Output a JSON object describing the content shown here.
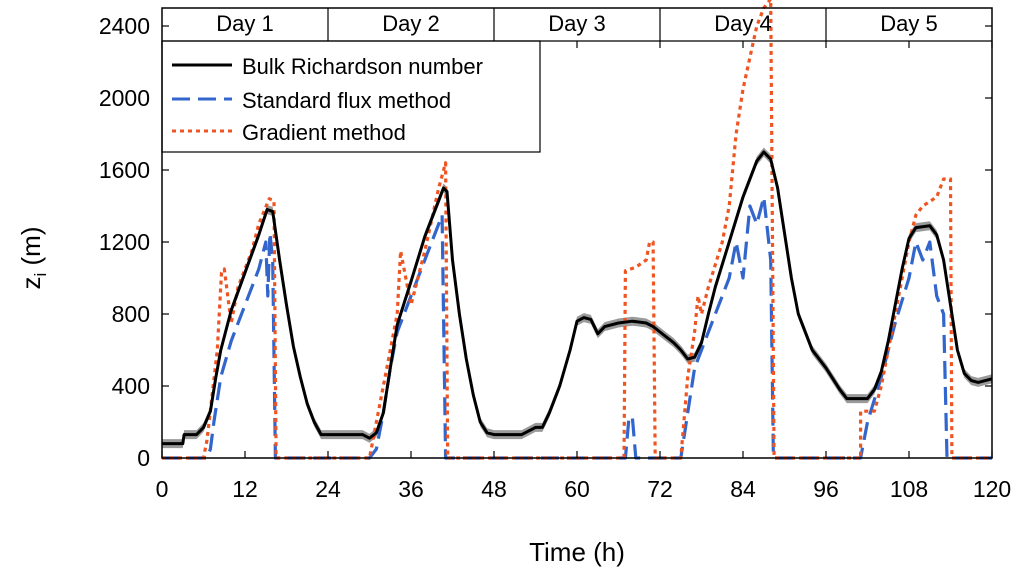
{
  "chart_data": {
    "type": "line",
    "xlabel": "Time (h)",
    "ylabel": "z",
    "ylabel_sub": "i",
    "ylabel_unit": " (m)",
    "xlim": [
      0,
      120
    ],
    "ylim": [
      0,
      2500
    ],
    "xticks": [
      0,
      12,
      24,
      36,
      48,
      60,
      72,
      84,
      96,
      108,
      120
    ],
    "yticks": [
      0,
      400,
      800,
      1200,
      1600,
      2000,
      2400
    ],
    "grid": false,
    "legend_position": "top-left",
    "day_bands": [
      {
        "label": "Day 1",
        "from": 0,
        "to": 24
      },
      {
        "label": "Day 2",
        "from": 24,
        "to": 48
      },
      {
        "label": "Day 3",
        "from": 48,
        "to": 72
      },
      {
        "label": "Day 4",
        "from": 72,
        "to": 96
      },
      {
        "label": "Day 5",
        "from": 96,
        "to": 120
      }
    ],
    "series": [
      {
        "name": "Bulk Richardson number",
        "color": "#000000",
        "style": "solid",
        "band_color": "#888888",
        "band_width": 50,
        "points": [
          [
            0,
            80
          ],
          [
            3,
            80
          ],
          [
            3.2,
            130
          ],
          [
            5,
            130
          ],
          [
            6,
            170
          ],
          [
            7,
            260
          ],
          [
            7.8,
            450
          ],
          [
            8.5,
            600
          ],
          [
            10,
            820
          ],
          [
            12,
            1030
          ],
          [
            14,
            1240
          ],
          [
            15.2,
            1380
          ],
          [
            16,
            1370
          ],
          [
            17,
            1100
          ],
          [
            18,
            850
          ],
          [
            19,
            620
          ],
          [
            20,
            450
          ],
          [
            21,
            300
          ],
          [
            22,
            200
          ],
          [
            23,
            130
          ],
          [
            29,
            130
          ],
          [
            30,
            110
          ],
          [
            31,
            140
          ],
          [
            32,
            250
          ],
          [
            33,
            500
          ],
          [
            34,
            740
          ],
          [
            36,
            980
          ],
          [
            38,
            1230
          ],
          [
            40,
            1430
          ],
          [
            40.7,
            1500
          ],
          [
            41.2,
            1480
          ],
          [
            42,
            1100
          ],
          [
            43,
            800
          ],
          [
            44,
            550
          ],
          [
            45,
            350
          ],
          [
            46,
            200
          ],
          [
            47,
            140
          ],
          [
            48,
            130
          ],
          [
            52,
            130
          ],
          [
            54,
            170
          ],
          [
            55,
            170
          ],
          [
            56,
            250
          ],
          [
            57.5,
            400
          ],
          [
            59,
            600
          ],
          [
            60,
            760
          ],
          [
            61,
            780
          ],
          [
            62,
            770
          ],
          [
            63,
            690
          ],
          [
            64,
            730
          ],
          [
            66,
            750
          ],
          [
            68,
            760
          ],
          [
            70,
            750
          ],
          [
            71,
            730
          ],
          [
            72,
            700
          ],
          [
            74,
            640
          ],
          [
            75,
            600
          ],
          [
            76,
            550
          ],
          [
            77,
            560
          ],
          [
            78,
            640
          ],
          [
            79,
            800
          ],
          [
            80,
            950
          ],
          [
            82,
            1200
          ],
          [
            84,
            1450
          ],
          [
            86,
            1650
          ],
          [
            87,
            1700
          ],
          [
            88,
            1660
          ],
          [
            89,
            1500
          ],
          [
            90,
            1250
          ],
          [
            91,
            1000
          ],
          [
            92,
            800
          ],
          [
            94,
            600
          ],
          [
            96,
            500
          ],
          [
            98,
            380
          ],
          [
            99,
            330
          ],
          [
            102,
            330
          ],
          [
            103,
            380
          ],
          [
            104,
            480
          ],
          [
            105,
            650
          ],
          [
            106,
            850
          ],
          [
            107,
            1050
          ],
          [
            108,
            1220
          ],
          [
            109,
            1280
          ],
          [
            111,
            1290
          ],
          [
            112,
            1240
          ],
          [
            113,
            1100
          ],
          [
            114,
            850
          ],
          [
            115,
            600
          ],
          [
            116,
            470
          ],
          [
            117,
            430
          ],
          [
            118,
            420
          ],
          [
            120,
            440
          ]
        ]
      },
      {
        "name": "Standard flux method",
        "color": "#3366cc",
        "style": "dashed",
        "points": [
          [
            0,
            0
          ],
          [
            6.5,
            0
          ],
          [
            7,
            50
          ],
          [
            7.5,
            200
          ],
          [
            8.5,
            450
          ],
          [
            10,
            650
          ],
          [
            12,
            850
          ],
          [
            14,
            1050
          ],
          [
            15,
            1200
          ],
          [
            15.3,
            900
          ],
          [
            15.6,
            1250
          ],
          [
            16,
            1100
          ],
          [
            16.4,
            0
          ],
          [
            30,
            0
          ],
          [
            31,
            50
          ],
          [
            32,
            250
          ],
          [
            33,
            500
          ],
          [
            34,
            700
          ],
          [
            36,
            900
          ],
          [
            38,
            1100
          ],
          [
            40,
            1300
          ],
          [
            40.5,
            1350
          ],
          [
            41,
            0
          ],
          [
            67,
            0
          ],
          [
            67.5,
            220
          ],
          [
            68,
            230
          ],
          [
            68.5,
            0
          ],
          [
            75,
            0
          ],
          [
            76,
            250
          ],
          [
            77,
            500
          ],
          [
            78,
            600
          ],
          [
            80,
            800
          ],
          [
            82,
            1000
          ],
          [
            83,
            1200
          ],
          [
            84,
            1000
          ],
          [
            85,
            1400
          ],
          [
            86,
            1300
          ],
          [
            87,
            1450
          ],
          [
            88,
            1100
          ],
          [
            88.4,
            0
          ],
          [
            101,
            0
          ],
          [
            102,
            200
          ],
          [
            104,
            450
          ],
          [
            106,
            750
          ],
          [
            108,
            1000
          ],
          [
            109,
            1200
          ],
          [
            110,
            1100
          ],
          [
            111,
            1200
          ],
          [
            112,
            900
          ],
          [
            113,
            800
          ],
          [
            113.5,
            0
          ],
          [
            120,
            0
          ]
        ]
      },
      {
        "name": "Gradient method",
        "color": "#ee5522",
        "style": "dotted",
        "points": [
          [
            0,
            0
          ],
          [
            6,
            0
          ],
          [
            6.5,
            100
          ],
          [
            8,
            600
          ],
          [
            8.6,
            1030
          ],
          [
            9,
            1050
          ],
          [
            10,
            750
          ],
          [
            11,
            950
          ],
          [
            13,
            1150
          ],
          [
            14,
            1300
          ],
          [
            15.5,
            1440
          ],
          [
            16.2,
            1430
          ],
          [
            16.5,
            0
          ],
          [
            30,
            0
          ],
          [
            31,
            200
          ],
          [
            33,
            600
          ],
          [
            34,
            800
          ],
          [
            34.5,
            1150
          ],
          [
            36,
            850
          ],
          [
            38,
            1150
          ],
          [
            40,
            1500
          ],
          [
            41,
            1640
          ],
          [
            41.3,
            0
          ],
          [
            66.8,
            0
          ],
          [
            67,
            1040
          ],
          [
            68.5,
            1060
          ],
          [
            70,
            1100
          ],
          [
            70.5,
            1200
          ],
          [
            71,
            1200
          ],
          [
            71.3,
            0
          ],
          [
            75,
            0
          ],
          [
            76,
            450
          ],
          [
            77,
            700
          ],
          [
            77.5,
            900
          ],
          [
            78,
            800
          ],
          [
            79,
            950
          ],
          [
            81,
            1200
          ],
          [
            82,
            1400
          ],
          [
            83,
            1800
          ],
          [
            84,
            2050
          ],
          [
            86,
            2400
          ],
          [
            87,
            2500
          ],
          [
            88,
            2550
          ],
          [
            88.5,
            0
          ],
          [
            101,
            0
          ],
          [
            101,
            260
          ],
          [
            103,
            260
          ],
          [
            104,
            400
          ],
          [
            106,
            800
          ],
          [
            108,
            1200
          ],
          [
            109,
            1350
          ],
          [
            110,
            1400
          ],
          [
            112,
            1450
          ],
          [
            113,
            1550
          ],
          [
            114,
            1550
          ],
          [
            114.2,
            0
          ],
          [
            120,
            0
          ]
        ]
      }
    ]
  }
}
